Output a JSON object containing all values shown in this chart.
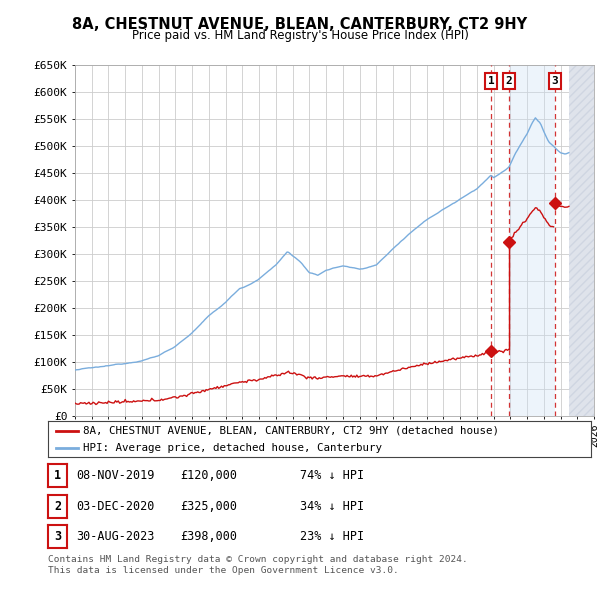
{
  "title": "8A, CHESTNUT AVENUE, BLEAN, CANTERBURY, CT2 9HY",
  "subtitle": "Price paid vs. HM Land Registry's House Price Index (HPI)",
  "xlim_start": 1995,
  "xlim_end": 2026,
  "ylim_min": 0,
  "ylim_max": 650000,
  "yticks": [
    0,
    50000,
    100000,
    150000,
    200000,
    250000,
    300000,
    350000,
    400000,
    450000,
    500000,
    550000,
    600000,
    650000
  ],
  "ytick_labels": [
    "£0",
    "£50K",
    "£100K",
    "£150K",
    "£200K",
    "£250K",
    "£300K",
    "£350K",
    "£400K",
    "£450K",
    "£500K",
    "£550K",
    "£600K",
    "£650K"
  ],
  "hpi_color": "#7aaddd",
  "paid_color": "#cc1111",
  "shade_color": "#cce0f5",
  "hatch_color": "#c0c8d8",
  "transactions": [
    {
      "num": 1,
      "date_x": 2019.85,
      "price": 120000,
      "label": "08-NOV-2019",
      "price_str": "£120,000",
      "pct": "74%"
    },
    {
      "num": 2,
      "date_x": 2020.92,
      "price": 325000,
      "label": "03-DEC-2020",
      "price_str": "£325,000",
      "pct": "34%"
    },
    {
      "num": 3,
      "date_x": 2023.66,
      "price": 398000,
      "label": "30-AUG-2023",
      "price_str": "£398,000",
      "pct": "23%"
    }
  ],
  "legend_paid_label": "8A, CHESTNUT AVENUE, BLEAN, CANTERBURY, CT2 9HY (detached house)",
  "legend_hpi_label": "HPI: Average price, detached house, Canterbury",
  "footnote": "Contains HM Land Registry data © Crown copyright and database right 2024.\nThis data is licensed under the Open Government Licence v3.0.",
  "shade_start": 2020.92,
  "shade_end": 2023.66,
  "future_start": 2024.5,
  "background_color": "#ffffff",
  "grid_color": "#cccccc"
}
